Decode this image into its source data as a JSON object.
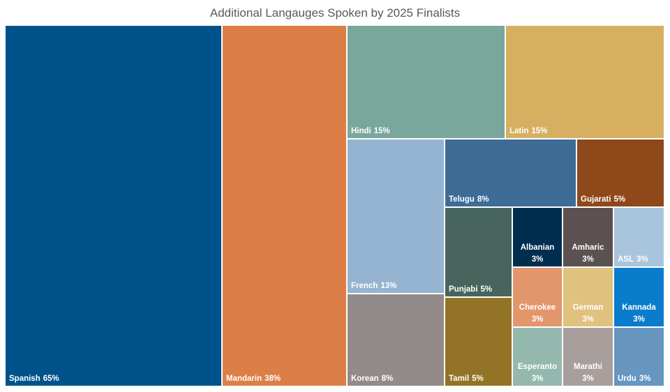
{
  "chart_data": {
    "type": "treemap",
    "title": "Additional Langauges Spoken by 2025 Finalists",
    "categories": [
      "Spanish",
      "Mandarin",
      "Hindi",
      "Latin",
      "French",
      "Korean",
      "Telugu",
      "Gujarati",
      "Punjabi",
      "Tamil",
      "Albanian",
      "Amharic",
      "ASL",
      "Cherokee",
      "German",
      "Kannada",
      "Esperanto",
      "Marathi",
      "Urdu"
    ],
    "values": [
      65,
      38,
      15,
      15,
      13,
      8,
      8,
      5,
      5,
      5,
      3,
      3,
      3,
      3,
      3,
      3,
      3,
      3,
      3
    ],
    "value_labels": [
      "65%",
      "38%",
      "15%",
      "15%",
      "13%",
      "8%",
      "8%",
      "5%",
      "5%",
      "5%",
      "3%",
      "3%",
      "3%",
      "3%",
      "3%",
      "3%",
      "3%",
      "3%",
      "3%"
    ],
    "colors": [
      "#00538a",
      "#dc7f47",
      "#7aa79b",
      "#d6b060",
      "#95b4d1",
      "#938b89",
      "#3d6c96",
      "#8f4819",
      "#47655c",
      "#937325",
      "#002e4f",
      "#5b5151",
      "#a9c5de",
      "#e2966b",
      "#e0c27e",
      "#0a7ccc",
      "#95b8ae",
      "#a89f9d",
      "#6796c1"
    ]
  }
}
